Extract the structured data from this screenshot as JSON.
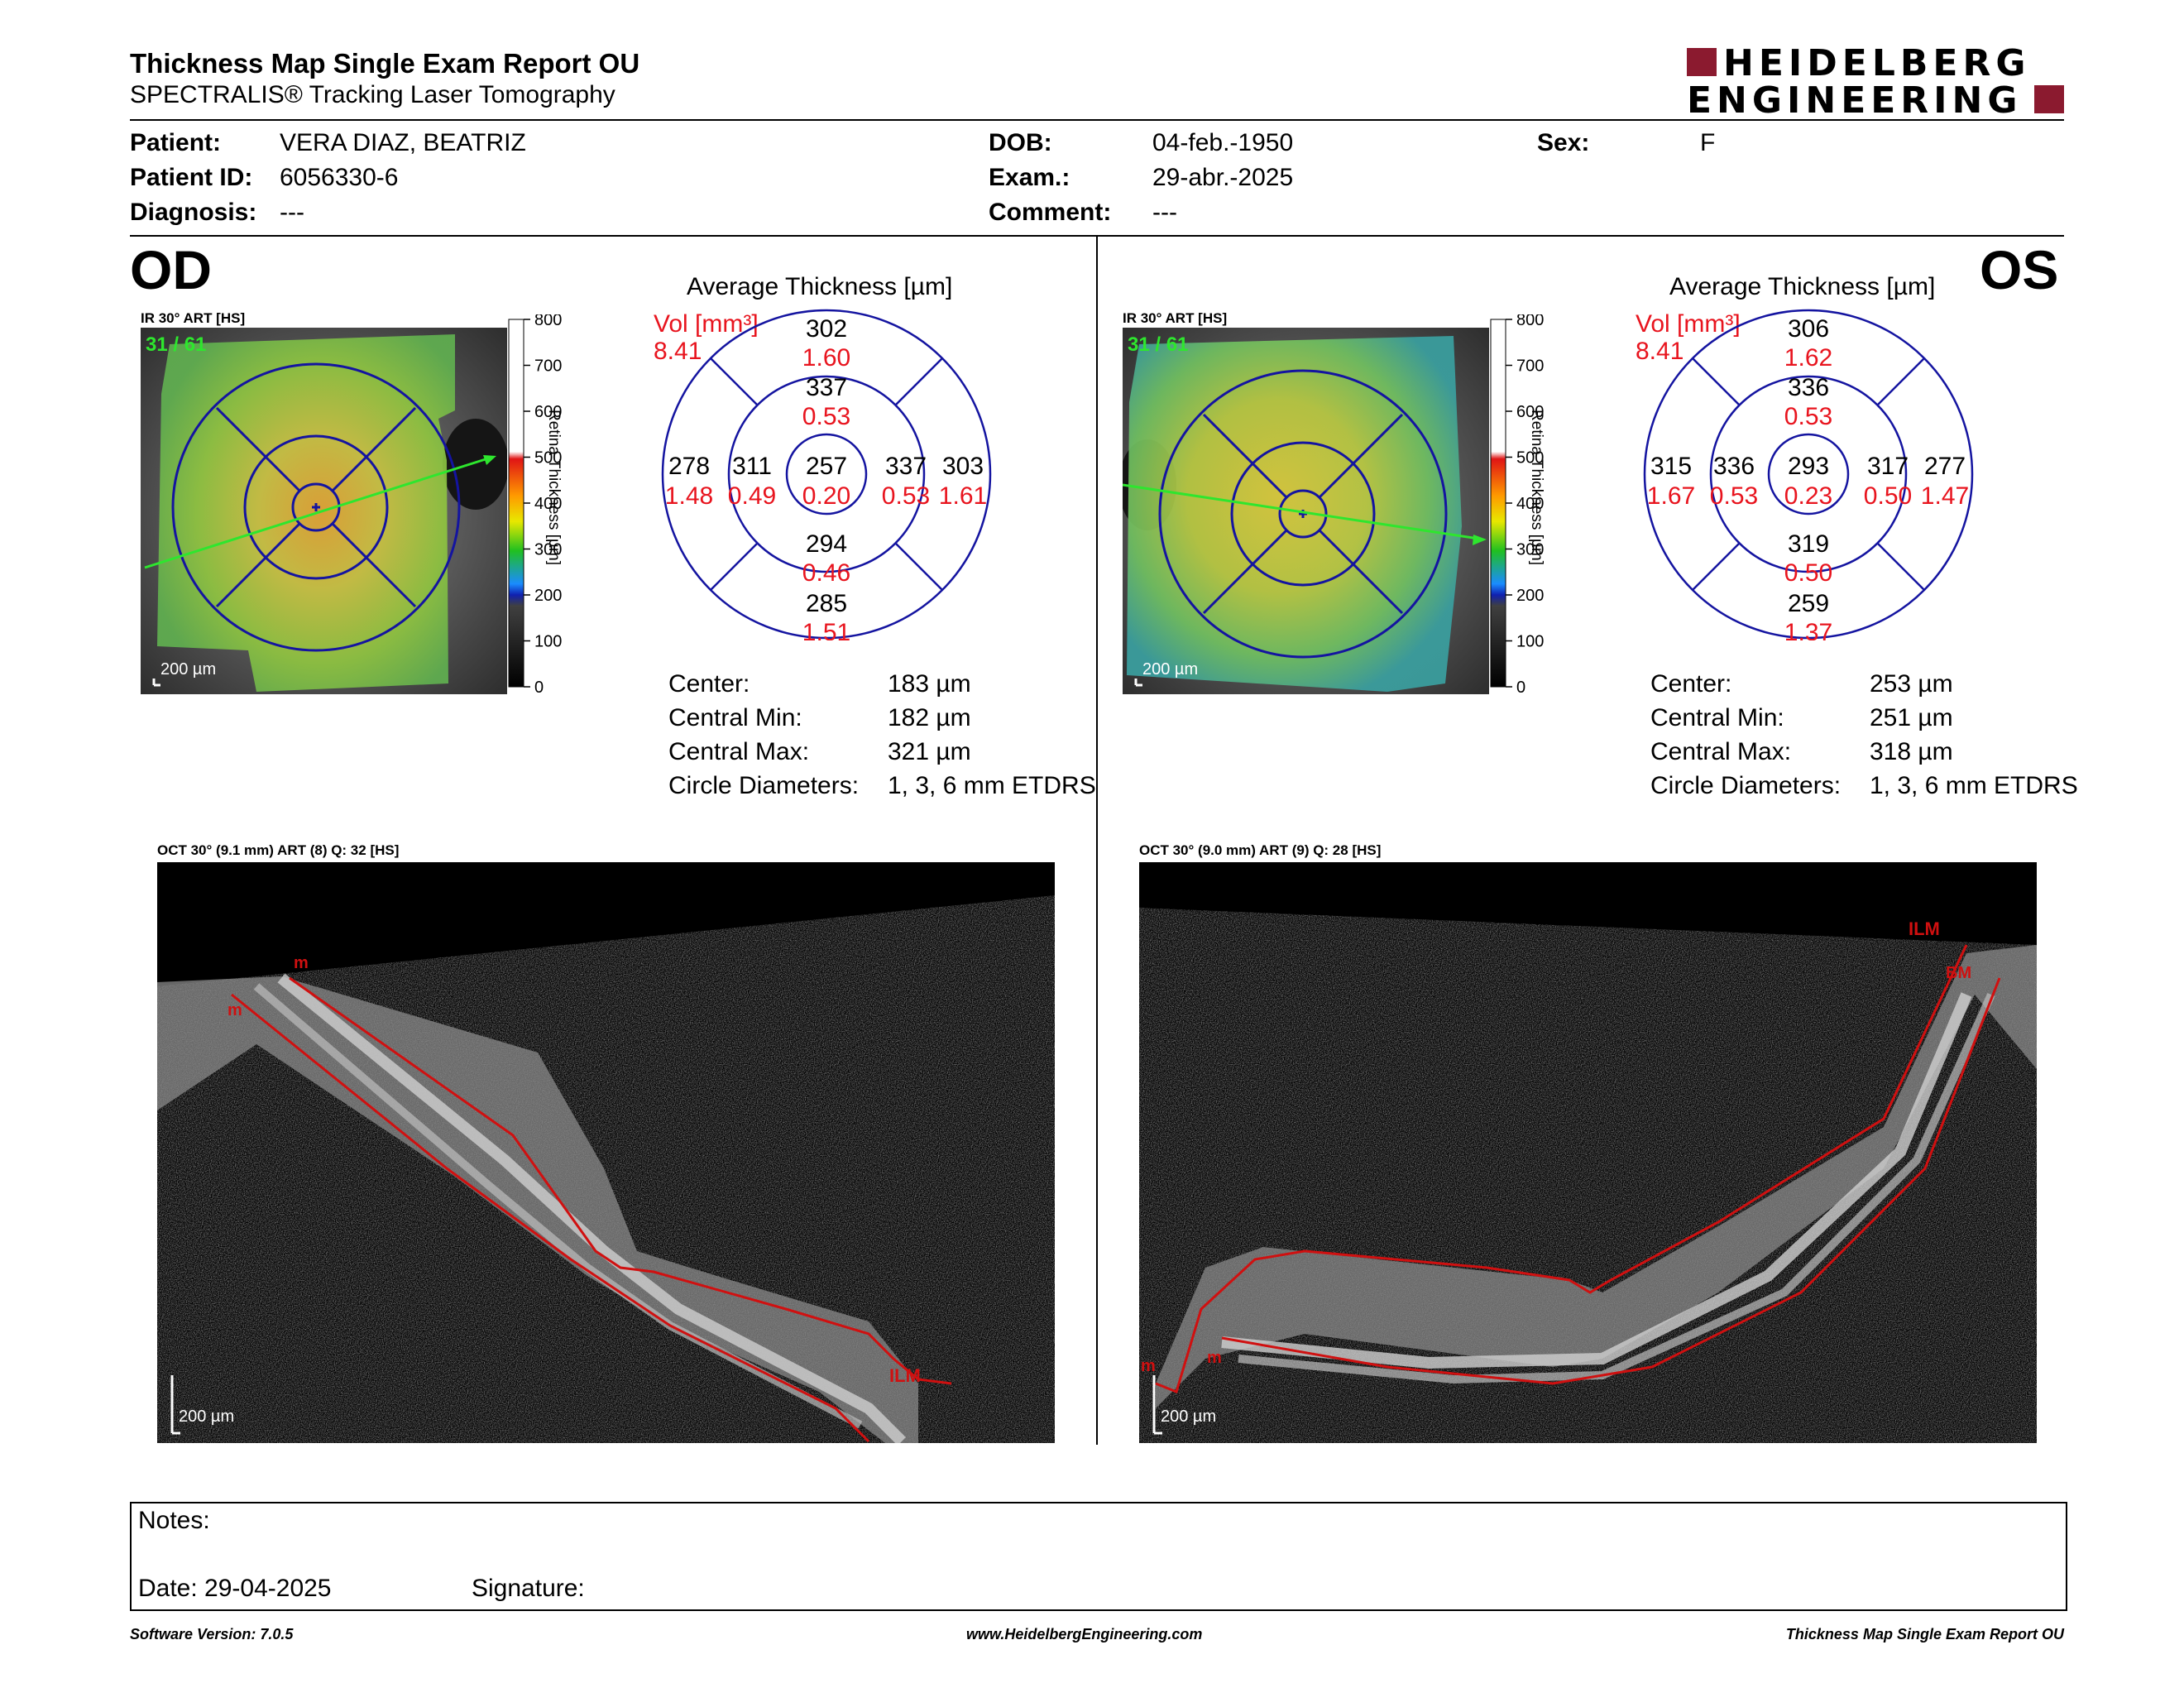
{
  "header": {
    "title": "Thickness Map Single Exam Report OU",
    "subtitle": "SPECTRALIS® Tracking Laser Tomography",
    "logo_line1": "HEIDELBERG",
    "logo_line2": "ENGINEERING",
    "brand_color": "#8b1a2f"
  },
  "patient": {
    "patient_label": "Patient:",
    "patient_value": "VERA DIAZ, BEATRIZ",
    "id_label": "Patient ID:",
    "id_value": "6056330-6",
    "diagnosis_label": "Diagnosis:",
    "diagnosis_value": "---",
    "dob_label": "DOB:",
    "dob_value": "04-feb.-1950",
    "exam_label": "Exam.:",
    "exam_value": "29-abr.-2025",
    "comment_label": "Comment:",
    "comment_value": "---",
    "sex_label": "Sex:",
    "sex_value": "F"
  },
  "od": {
    "eye_label": "OD",
    "ir_label": "IR 30° ART [HS]",
    "frame_label": "31 / 61",
    "scale_label": "200 µm",
    "colorbar_title": "Retina Thickness [µm]",
    "colorbar_ticks": [
      "800",
      "700",
      "600",
      "500",
      "400",
      "300",
      "200",
      "100",
      "0"
    ],
    "avg_title": "Average Thickness [µm]",
    "vol_label": "Vol [mm³]",
    "vol_value": "8.41",
    "sectors": {
      "center": {
        "t": "257",
        "v": "0.20"
      },
      "inner_sup": {
        "t": "337",
        "v": "0.53"
      },
      "inner_inf": {
        "t": "294",
        "v": "0.46"
      },
      "inner_left": {
        "t": "311",
        "v": "0.49"
      },
      "inner_right": {
        "t": "337",
        "v": "0.53"
      },
      "outer_sup": {
        "t": "302",
        "v": "1.60"
      },
      "outer_inf": {
        "t": "285",
        "v": "1.51"
      },
      "outer_left": {
        "t": "278",
        "v": "1.48"
      },
      "outer_right": {
        "t": "303",
        "v": "1.61"
      }
    },
    "stats": {
      "center_label": "Center:",
      "center_value": "183 µm",
      "min_label": "Central Min:",
      "min_value": "182 µm",
      "max_label": "Central Max:",
      "max_value": "321 µm",
      "diam_label": "Circle Diameters:",
      "diam_value": "1, 3, 6 mm ETDRS"
    },
    "oct_label": "OCT 30° (9.1 mm) ART (8) Q: 32 [HS]",
    "oct_scale": "200 µm",
    "oct_marker_ilm": "ILM",
    "oct_marker_m": "m"
  },
  "os": {
    "eye_label": "OS",
    "ir_label": "IR 30° ART [HS]",
    "frame_label": "31 / 61",
    "scale_label": "200 µm",
    "colorbar_title": "Retina Thickness [µm]",
    "colorbar_ticks": [
      "800",
      "700",
      "600",
      "500",
      "400",
      "300",
      "200",
      "100",
      "0"
    ],
    "avg_title": "Average Thickness [µm]",
    "vol_label": "Vol [mm³]",
    "vol_value": "8.41",
    "sectors": {
      "center": {
        "t": "293",
        "v": "0.23"
      },
      "inner_sup": {
        "t": "336",
        "v": "0.53"
      },
      "inner_inf": {
        "t": "319",
        "v": "0.50"
      },
      "inner_left": {
        "t": "336",
        "v": "0.53"
      },
      "inner_right": {
        "t": "317",
        "v": "0.50"
      },
      "outer_sup": {
        "t": "306",
        "v": "1.62"
      },
      "outer_inf": {
        "t": "259",
        "v": "1.37"
      },
      "outer_left": {
        "t": "315",
        "v": "1.67"
      },
      "outer_right": {
        "t": "277",
        "v": "1.47"
      }
    },
    "stats": {
      "center_label": "Center:",
      "center_value": "253 µm",
      "min_label": "Central Min:",
      "min_value": "251 µm",
      "max_label": "Central Max:",
      "max_value": "318 µm",
      "diam_label": "Circle Diameters:",
      "diam_value": "1, 3, 6 mm ETDRS"
    },
    "oct_label": "OCT 30° (9.0 mm) ART (9) Q: 28 [HS]",
    "oct_scale": "200 µm",
    "oct_marker_ilm": "ILM",
    "oct_marker_bm": "BM",
    "oct_marker_m": "m"
  },
  "notes": {
    "notes_label": "Notes:",
    "date_label": "Date: 29-04-2025",
    "signature_label": "Signature:"
  },
  "footer": {
    "software": "Software Version: 7.0.5",
    "website": "www.HeidelbergEngineering.com",
    "report_name": "Thickness Map Single Exam Report OU"
  },
  "colors": {
    "grid_blue": "#1a1aa0",
    "value_red": "#e8141e",
    "layer_red": "#d01010",
    "arrow_green": "#2ee62e"
  }
}
